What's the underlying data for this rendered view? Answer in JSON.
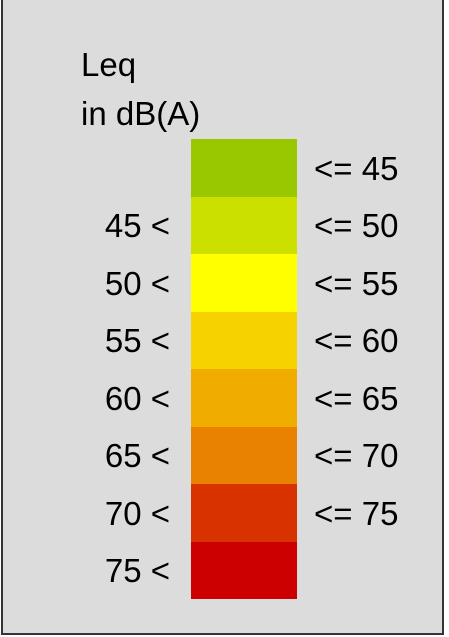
{
  "legend": {
    "title_line1": "Leq",
    "title_line2": "in dB(A)",
    "classes": [
      {
        "lower": "",
        "upper": "<= 45",
        "color": "#99c800"
      },
      {
        "lower": "45 <",
        "upper": "<= 50",
        "color": "#cce000"
      },
      {
        "lower": "50 <",
        "upper": "<= 55",
        "color": "#ffff00"
      },
      {
        "lower": "55 <",
        "upper": "<= 60",
        "color": "#f5d200"
      },
      {
        "lower": "60 <",
        "upper": "<= 65",
        "color": "#f0ad00"
      },
      {
        "lower": "65 <",
        "upper": "<= 70",
        "color": "#e88200"
      },
      {
        "lower": "70 <",
        "upper": "<= 75",
        "color": "#d83200"
      },
      {
        "lower": "75 <",
        "upper": "",
        "color": "#cc0000"
      }
    ]
  }
}
